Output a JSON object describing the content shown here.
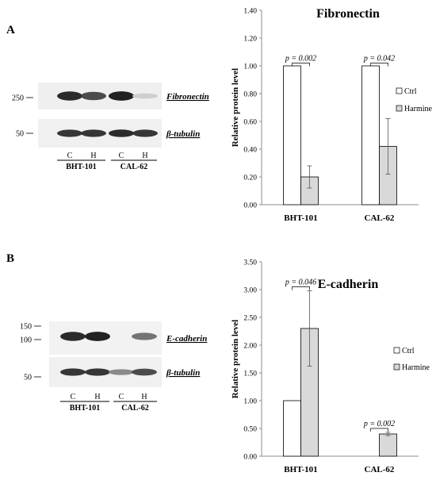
{
  "panels": {
    "A": {
      "letter": "A",
      "blot": {
        "bands": [
          {
            "label": "Fibronectin",
            "marker": "250",
            "intensity": [
              0.9,
              0.75,
              0.95,
              0.12
            ]
          },
          {
            "label": "β-tubulin",
            "marker": "50",
            "intensity": [
              0.85,
              0.85,
              0.9,
              0.85
            ]
          }
        ],
        "lanes": [
          "C",
          "H",
          "C",
          "H"
        ],
        "groups": [
          "BHT-101",
          "CAL-62"
        ]
      }
    },
    "B": {
      "letter": "B",
      "blot": {
        "bands": [
          {
            "label": "E-cadherin",
            "markers": [
              "150",
              "100"
            ],
            "intensity": [
              0.9,
              0.95,
              0.0,
              0.55
            ]
          },
          {
            "label": "β-tubulin",
            "marker": "50",
            "intensity": [
              0.85,
              0.85,
              0.45,
              0.75
            ]
          }
        ],
        "lanes": [
          "C",
          "H",
          "C",
          "H"
        ],
        "groups": [
          "BHT-101",
          "CAL-62"
        ]
      }
    }
  },
  "chart_data": [
    {
      "type": "bar",
      "title": "Fibronectin",
      "ylabel": "Relative protein level",
      "categories": [
        "BHT-101",
        "CAL-62"
      ],
      "series": [
        {
          "name": "Ctrl",
          "values": [
            1.0,
            1.0
          ],
          "errors": [
            0,
            0
          ],
          "color": "#ffffff"
        },
        {
          "name": "Harmine",
          "values": [
            0.2,
            0.42
          ],
          "errors": [
            0.08,
            0.2
          ],
          "color": "#d9d9d9"
        }
      ],
      "ylim": [
        0,
        1.4
      ],
      "yticks": [
        0.0,
        0.2,
        0.4,
        0.6,
        0.8,
        1.0,
        1.2,
        1.4
      ],
      "ytick_labels": [
        "0.00",
        "0.20",
        "0.40",
        "0.60",
        "0.80",
        "1.00",
        "1.20",
        "1.40"
      ],
      "annotations": [
        {
          "text": "p = 0.002",
          "category": 0,
          "y": 1.02
        },
        {
          "text": "p = 0.042",
          "category": 1,
          "y": 1.02
        }
      ],
      "legend": "right",
      "grid": false
    },
    {
      "type": "bar",
      "title": "E-cadherin",
      "ylabel": "Relative protein level",
      "categories": [
        "BHT-101",
        "CAL-62"
      ],
      "series": [
        {
          "name": "Ctrl",
          "values": [
            1.0,
            0.0
          ],
          "errors": [
            0,
            0
          ],
          "color": "#ffffff"
        },
        {
          "name": "Harmine",
          "values": [
            2.3,
            0.4
          ],
          "errors": [
            0.68,
            0.03
          ],
          "color": "#d9d9d9"
        }
      ],
      "ylim": [
        0,
        3.5
      ],
      "yticks": [
        0.0,
        0.5,
        1.0,
        1.5,
        2.0,
        2.5,
        3.0,
        3.5
      ],
      "ytick_labels": [
        "0.00",
        "0.50",
        "1.00",
        "1.50",
        "2.00",
        "2.50",
        "3.00",
        "3.50"
      ],
      "annotations": [
        {
          "text": "p = 0.046",
          "category": 0,
          "y": 3.05
        },
        {
          "text": "p = 0.002",
          "category": 1,
          "y": 0.5
        }
      ],
      "legend": "right",
      "grid": false
    }
  ]
}
